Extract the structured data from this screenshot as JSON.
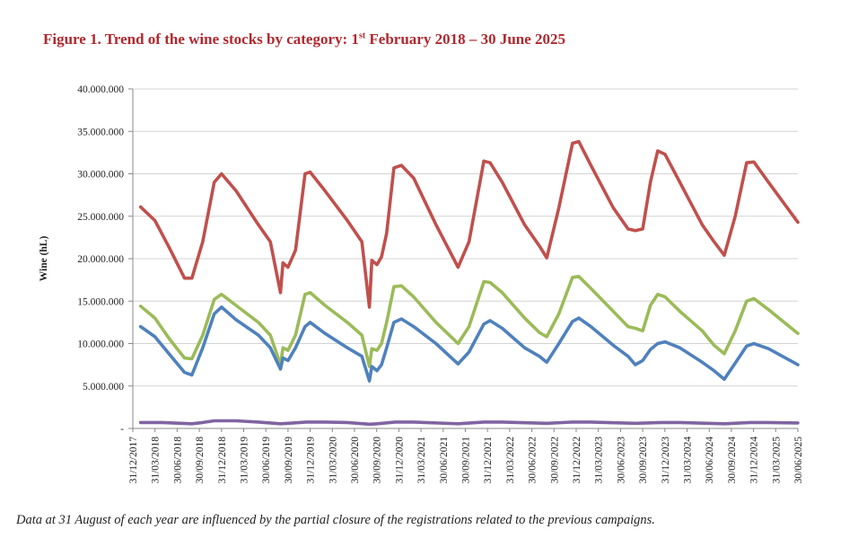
{
  "figure": {
    "title_main": "Figure 1. Trend of the wine stocks by category: 1",
    "title_sup": "st",
    "title_rest": " February 2018 – 30 June 2025",
    "note": "Data at 31 August of each year are influenced by the partial closure of the registrations related to the previous campaigns."
  },
  "chart_data": {
    "type": "line",
    "ylabel": "Wine (hL)",
    "ylim": [
      0,
      40000000
    ],
    "yticks": [
      0,
      5000000,
      10000000,
      15000000,
      20000000,
      25000000,
      30000000,
      35000000,
      40000000
    ],
    "ytick_labels": [
      "-",
      "5.000.000",
      "10.000.000",
      "15.000.000",
      "20.000.000",
      "25.000.000",
      "30.000.000",
      "35.000.000",
      "40.000.000"
    ],
    "grid": true,
    "xtick_labels": [
      "31/12/2017",
      "31/03/2018",
      "30/06/2018",
      "30/09/2018",
      "31/12/2018",
      "31/03/2019",
      "30/06/2019",
      "30/09/2019",
      "31/12/2019",
      "31/03/2020",
      "30/06/2020",
      "30/09/2020",
      "31/12/2020",
      "31/03/2021",
      "30/06/2021",
      "30/09/2021",
      "31/12/2021",
      "31/03/2022",
      "30/06/2022",
      "30/09/2022",
      "31/12/2022",
      "31/03/2023",
      "30/06/2023",
      "30/09/2023",
      "31/12/2023",
      "31/03/2024",
      "30/06/2024",
      "30/09/2024",
      "31/12/2024",
      "31/03/2025",
      "30/06/2025"
    ],
    "series": [
      {
        "color": "#c0504d",
        "points": [
          [
            "2018-02-01",
            26100000
          ],
          [
            "2018-04-01",
            24500000
          ],
          [
            "2018-06-01",
            21200000
          ],
          [
            "2018-08-01",
            17700000
          ],
          [
            "2018-08-31",
            17700000
          ],
          [
            "2018-10-15",
            22000000
          ],
          [
            "2018-12-01",
            29000000
          ],
          [
            "2018-12-31",
            30000000
          ],
          [
            "2019-03-01",
            28000000
          ],
          [
            "2019-06-01",
            24000000
          ],
          [
            "2019-07-20",
            22000000
          ],
          [
            "2019-08-31",
            16000000
          ],
          [
            "2019-09-10",
            19500000
          ],
          [
            "2019-10-01",
            19000000
          ],
          [
            "2019-11-01",
            21000000
          ],
          [
            "2019-12-10",
            30000000
          ],
          [
            "2019-12-31",
            30200000
          ],
          [
            "2020-03-01",
            28000000
          ],
          [
            "2020-06-01",
            24500000
          ],
          [
            "2020-07-31",
            22000000
          ],
          [
            "2020-08-31",
            14300000
          ],
          [
            "2020-09-10",
            19800000
          ],
          [
            "2020-10-01",
            19300000
          ],
          [
            "2020-10-20",
            20200000
          ],
          [
            "2020-11-10",
            23000000
          ],
          [
            "2020-12-10",
            30700000
          ],
          [
            "2021-01-10",
            31000000
          ],
          [
            "2021-03-01",
            29500000
          ],
          [
            "2021-06-01",
            24000000
          ],
          [
            "2021-08-31",
            19000000
          ],
          [
            "2021-10-15",
            22000000
          ],
          [
            "2021-12-15",
            31500000
          ],
          [
            "2022-01-10",
            31300000
          ],
          [
            "2022-03-01",
            29000000
          ],
          [
            "2022-06-01",
            24000000
          ],
          [
            "2022-08-01",
            21500000
          ],
          [
            "2022-08-31",
            20100000
          ],
          [
            "2022-10-20",
            26000000
          ],
          [
            "2022-12-15",
            33600000
          ],
          [
            "2023-01-10",
            33800000
          ],
          [
            "2023-03-01",
            31000000
          ],
          [
            "2023-06-01",
            26000000
          ],
          [
            "2023-08-01",
            23500000
          ],
          [
            "2023-08-31",
            23300000
          ],
          [
            "2023-09-30",
            23500000
          ],
          [
            "2023-11-01",
            29000000
          ],
          [
            "2023-12-01",
            32700000
          ],
          [
            "2023-12-31",
            32300000
          ],
          [
            "2024-03-01",
            29000000
          ],
          [
            "2024-06-01",
            24000000
          ],
          [
            "2024-07-20",
            22000000
          ],
          [
            "2024-08-31",
            20400000
          ],
          [
            "2024-10-15",
            25000000
          ],
          [
            "2024-12-01",
            31300000
          ],
          [
            "2024-12-31",
            31400000
          ],
          [
            "2025-03-01",
            29000000
          ],
          [
            "2025-06-30",
            24300000
          ]
        ]
      },
      {
        "color": "#9bbb59",
        "points": [
          [
            "2018-02-01",
            14400000
          ],
          [
            "2018-04-01",
            13000000
          ],
          [
            "2018-06-01",
            10500000
          ],
          [
            "2018-08-01",
            8300000
          ],
          [
            "2018-08-31",
            8200000
          ],
          [
            "2018-10-15",
            11000000
          ],
          [
            "2018-12-01",
            15200000
          ],
          [
            "2018-12-31",
            15800000
          ],
          [
            "2019-03-01",
            14500000
          ],
          [
            "2019-06-01",
            12500000
          ],
          [
            "2019-07-20",
            11000000
          ],
          [
            "2019-08-31",
            7500000
          ],
          [
            "2019-09-10",
            9500000
          ],
          [
            "2019-10-01",
            9200000
          ],
          [
            "2019-11-01",
            11000000
          ],
          [
            "2019-12-10",
            15800000
          ],
          [
            "2019-12-31",
            16000000
          ],
          [
            "2020-03-01",
            14500000
          ],
          [
            "2020-06-01",
            12500000
          ],
          [
            "2020-07-31",
            11000000
          ],
          [
            "2020-08-31",
            7300000
          ],
          [
            "2020-09-10",
            9400000
          ],
          [
            "2020-10-01",
            9200000
          ],
          [
            "2020-10-20",
            10000000
          ],
          [
            "2020-11-10",
            12500000
          ],
          [
            "2020-12-10",
            16700000
          ],
          [
            "2021-01-10",
            16800000
          ],
          [
            "2021-03-01",
            15500000
          ],
          [
            "2021-06-01",
            12500000
          ],
          [
            "2021-08-31",
            10000000
          ],
          [
            "2021-10-15",
            12000000
          ],
          [
            "2021-12-15",
            17300000
          ],
          [
            "2022-01-10",
            17200000
          ],
          [
            "2022-03-01",
            16000000
          ],
          [
            "2022-06-01",
            13000000
          ],
          [
            "2022-08-01",
            11300000
          ],
          [
            "2022-08-31",
            10800000
          ],
          [
            "2022-10-20",
            13500000
          ],
          [
            "2022-12-15",
            17800000
          ],
          [
            "2023-01-10",
            17900000
          ],
          [
            "2023-03-01",
            16500000
          ],
          [
            "2023-06-01",
            13800000
          ],
          [
            "2023-08-01",
            12000000
          ],
          [
            "2023-08-31",
            11800000
          ],
          [
            "2023-09-30",
            11500000
          ],
          [
            "2023-11-01",
            14500000
          ],
          [
            "2023-12-01",
            15800000
          ],
          [
            "2023-12-31",
            15500000
          ],
          [
            "2024-03-01",
            13800000
          ],
          [
            "2024-06-01",
            11500000
          ],
          [
            "2024-07-20",
            9800000
          ],
          [
            "2024-08-31",
            8800000
          ],
          [
            "2024-10-15",
            11500000
          ],
          [
            "2024-12-01",
            15000000
          ],
          [
            "2024-12-31",
            15300000
          ],
          [
            "2025-03-01",
            14000000
          ],
          [
            "2025-06-30",
            11200000
          ]
        ]
      },
      {
        "color": "#4f81bd",
        "points": [
          [
            "2018-02-01",
            12000000
          ],
          [
            "2018-04-01",
            10800000
          ],
          [
            "2018-06-01",
            8700000
          ],
          [
            "2018-08-01",
            6600000
          ],
          [
            "2018-08-31",
            6300000
          ],
          [
            "2018-10-15",
            9500000
          ],
          [
            "2018-12-01",
            13500000
          ],
          [
            "2018-12-31",
            14300000
          ],
          [
            "2019-03-01",
            12800000
          ],
          [
            "2019-06-01",
            11000000
          ],
          [
            "2019-07-20",
            9500000
          ],
          [
            "2019-08-31",
            7000000
          ],
          [
            "2019-09-10",
            8300000
          ],
          [
            "2019-10-01",
            8000000
          ],
          [
            "2019-11-01",
            9500000
          ],
          [
            "2019-12-10",
            12000000
          ],
          [
            "2019-12-31",
            12500000
          ],
          [
            "2020-03-01",
            11200000
          ],
          [
            "2020-06-01",
            9500000
          ],
          [
            "2020-07-31",
            8500000
          ],
          [
            "2020-08-31",
            5600000
          ],
          [
            "2020-09-10",
            7300000
          ],
          [
            "2020-10-01",
            6800000
          ],
          [
            "2020-10-20",
            7500000
          ],
          [
            "2020-11-10",
            9500000
          ],
          [
            "2020-12-10",
            12500000
          ],
          [
            "2021-01-10",
            12900000
          ],
          [
            "2021-03-01",
            12000000
          ],
          [
            "2021-06-01",
            10000000
          ],
          [
            "2021-08-31",
            7600000
          ],
          [
            "2021-10-15",
            9000000
          ],
          [
            "2021-12-15",
            12300000
          ],
          [
            "2022-01-10",
            12700000
          ],
          [
            "2022-03-01",
            11800000
          ],
          [
            "2022-06-01",
            9500000
          ],
          [
            "2022-08-01",
            8500000
          ],
          [
            "2022-08-31",
            7800000
          ],
          [
            "2022-10-20",
            10000000
          ],
          [
            "2022-12-15",
            12600000
          ],
          [
            "2023-01-10",
            13000000
          ],
          [
            "2023-03-01",
            12000000
          ],
          [
            "2023-06-01",
            9800000
          ],
          [
            "2023-08-01",
            8500000
          ],
          [
            "2023-08-31",
            7500000
          ],
          [
            "2023-09-30",
            8000000
          ],
          [
            "2023-11-01",
            9300000
          ],
          [
            "2023-12-01",
            10000000
          ],
          [
            "2023-12-31",
            10200000
          ],
          [
            "2024-03-01",
            9500000
          ],
          [
            "2024-06-01",
            7800000
          ],
          [
            "2024-07-20",
            6800000
          ],
          [
            "2024-08-31",
            5800000
          ],
          [
            "2024-10-15",
            7700000
          ],
          [
            "2024-12-01",
            9700000
          ],
          [
            "2024-12-31",
            10000000
          ],
          [
            "2025-03-01",
            9400000
          ],
          [
            "2025-06-30",
            7500000
          ]
        ]
      },
      {
        "color": "#8064a2",
        "points": [
          [
            "2018-02-01",
            700000
          ],
          [
            "2018-05-01",
            700000
          ],
          [
            "2018-08-31",
            550000
          ],
          [
            "2018-10-15",
            700000
          ],
          [
            "2018-12-01",
            900000
          ],
          [
            "2019-03-01",
            900000
          ],
          [
            "2019-06-01",
            750000
          ],
          [
            "2019-08-31",
            550000
          ],
          [
            "2019-10-01",
            600000
          ],
          [
            "2019-12-15",
            750000
          ],
          [
            "2020-03-01",
            750000
          ],
          [
            "2020-06-01",
            700000
          ],
          [
            "2020-08-31",
            500000
          ],
          [
            "2020-10-01",
            550000
          ],
          [
            "2020-12-15",
            750000
          ],
          [
            "2021-03-01",
            750000
          ],
          [
            "2021-08-31",
            550000
          ],
          [
            "2021-12-15",
            750000
          ],
          [
            "2022-03-01",
            750000
          ],
          [
            "2022-08-31",
            600000
          ],
          [
            "2022-12-15",
            750000
          ],
          [
            "2023-03-01",
            750000
          ],
          [
            "2023-08-31",
            600000
          ],
          [
            "2023-12-15",
            700000
          ],
          [
            "2024-03-01",
            700000
          ],
          [
            "2024-08-31",
            550000
          ],
          [
            "2024-12-15",
            700000
          ],
          [
            "2025-03-01",
            700000
          ],
          [
            "2025-06-30",
            650000
          ]
        ]
      }
    ]
  }
}
